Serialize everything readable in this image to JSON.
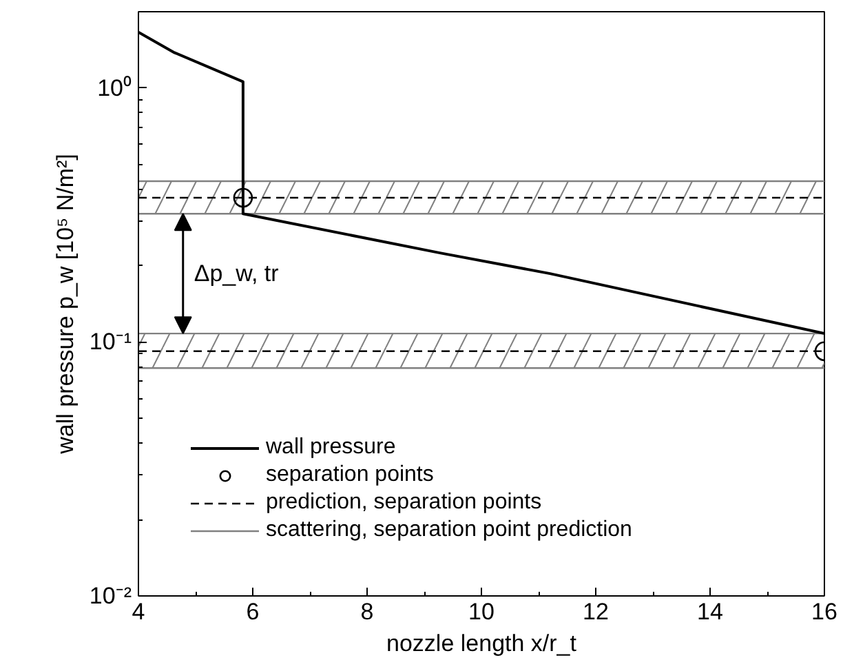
{
  "chart_data": {
    "type": "line",
    "xlabel": "nozzle length x/r_t",
    "ylabel": "wall pressure p_w [10⁵ N/m²]",
    "log": "y",
    "grid": false,
    "legend": "bottom left",
    "xlim": [
      4,
      16
    ],
    "xticks": [
      4,
      6,
      8,
      10,
      12,
      14,
      16
    ],
    "ylim": [
      0.01,
      2
    ],
    "yticks": [
      {
        "value": 1,
        "label": "10⁰"
      },
      {
        "value": 0.1,
        "label": "10⁻¹"
      },
      {
        "value": 0.01,
        "label": "10⁻²"
      }
    ],
    "series": [
      {
        "name": "wall pressure",
        "color": "#000000",
        "line_style": "solid",
        "marker": "none",
        "x": [
          4,
          4.63,
          5.83,
          5.83,
          9.29,
          11.2,
          16
        ],
        "values": [
          1.66,
          1.38,
          1.06,
          0.32,
          0.224,
          0.186,
          0.108
        ]
      },
      {
        "name": "separation points",
        "type": "scatter",
        "color": "#000000",
        "marker": "circle",
        "x": [
          5.83,
          16
        ],
        "values": [
          0.37,
          0.092
        ]
      }
    ],
    "ref_lines": [
      {
        "axis": "y",
        "value": 0.37,
        "label": "prediction, separation points",
        "color": "#000000",
        "line_style": "dashed"
      },
      {
        "axis": "y",
        "value": 0.092,
        "color": "#000000",
        "line_style": "dashed"
      },
      {
        "axis": "y",
        "value": 0.43,
        "label": "scattering, separation point prediction",
        "color": "#808080",
        "line_style": "solid"
      },
      {
        "axis": "y",
        "value": 0.32,
        "color": "#808080",
        "line_style": "solid"
      },
      {
        "axis": "y",
        "value": 0.108,
        "color": "#808080",
        "line_style": "solid"
      },
      {
        "axis": "y",
        "value": 0.079,
        "color": "#808080",
        "line_style": "solid"
      }
    ],
    "bands": [
      {
        "axis": "y",
        "from": 0.32,
        "to": 0.43,
        "color": "#808080"
      },
      {
        "axis": "y",
        "from": 0.079,
        "to": 0.108,
        "color": "#808080"
      }
    ],
    "annotations": [
      "Δp_w, tr"
    ]
  }
}
